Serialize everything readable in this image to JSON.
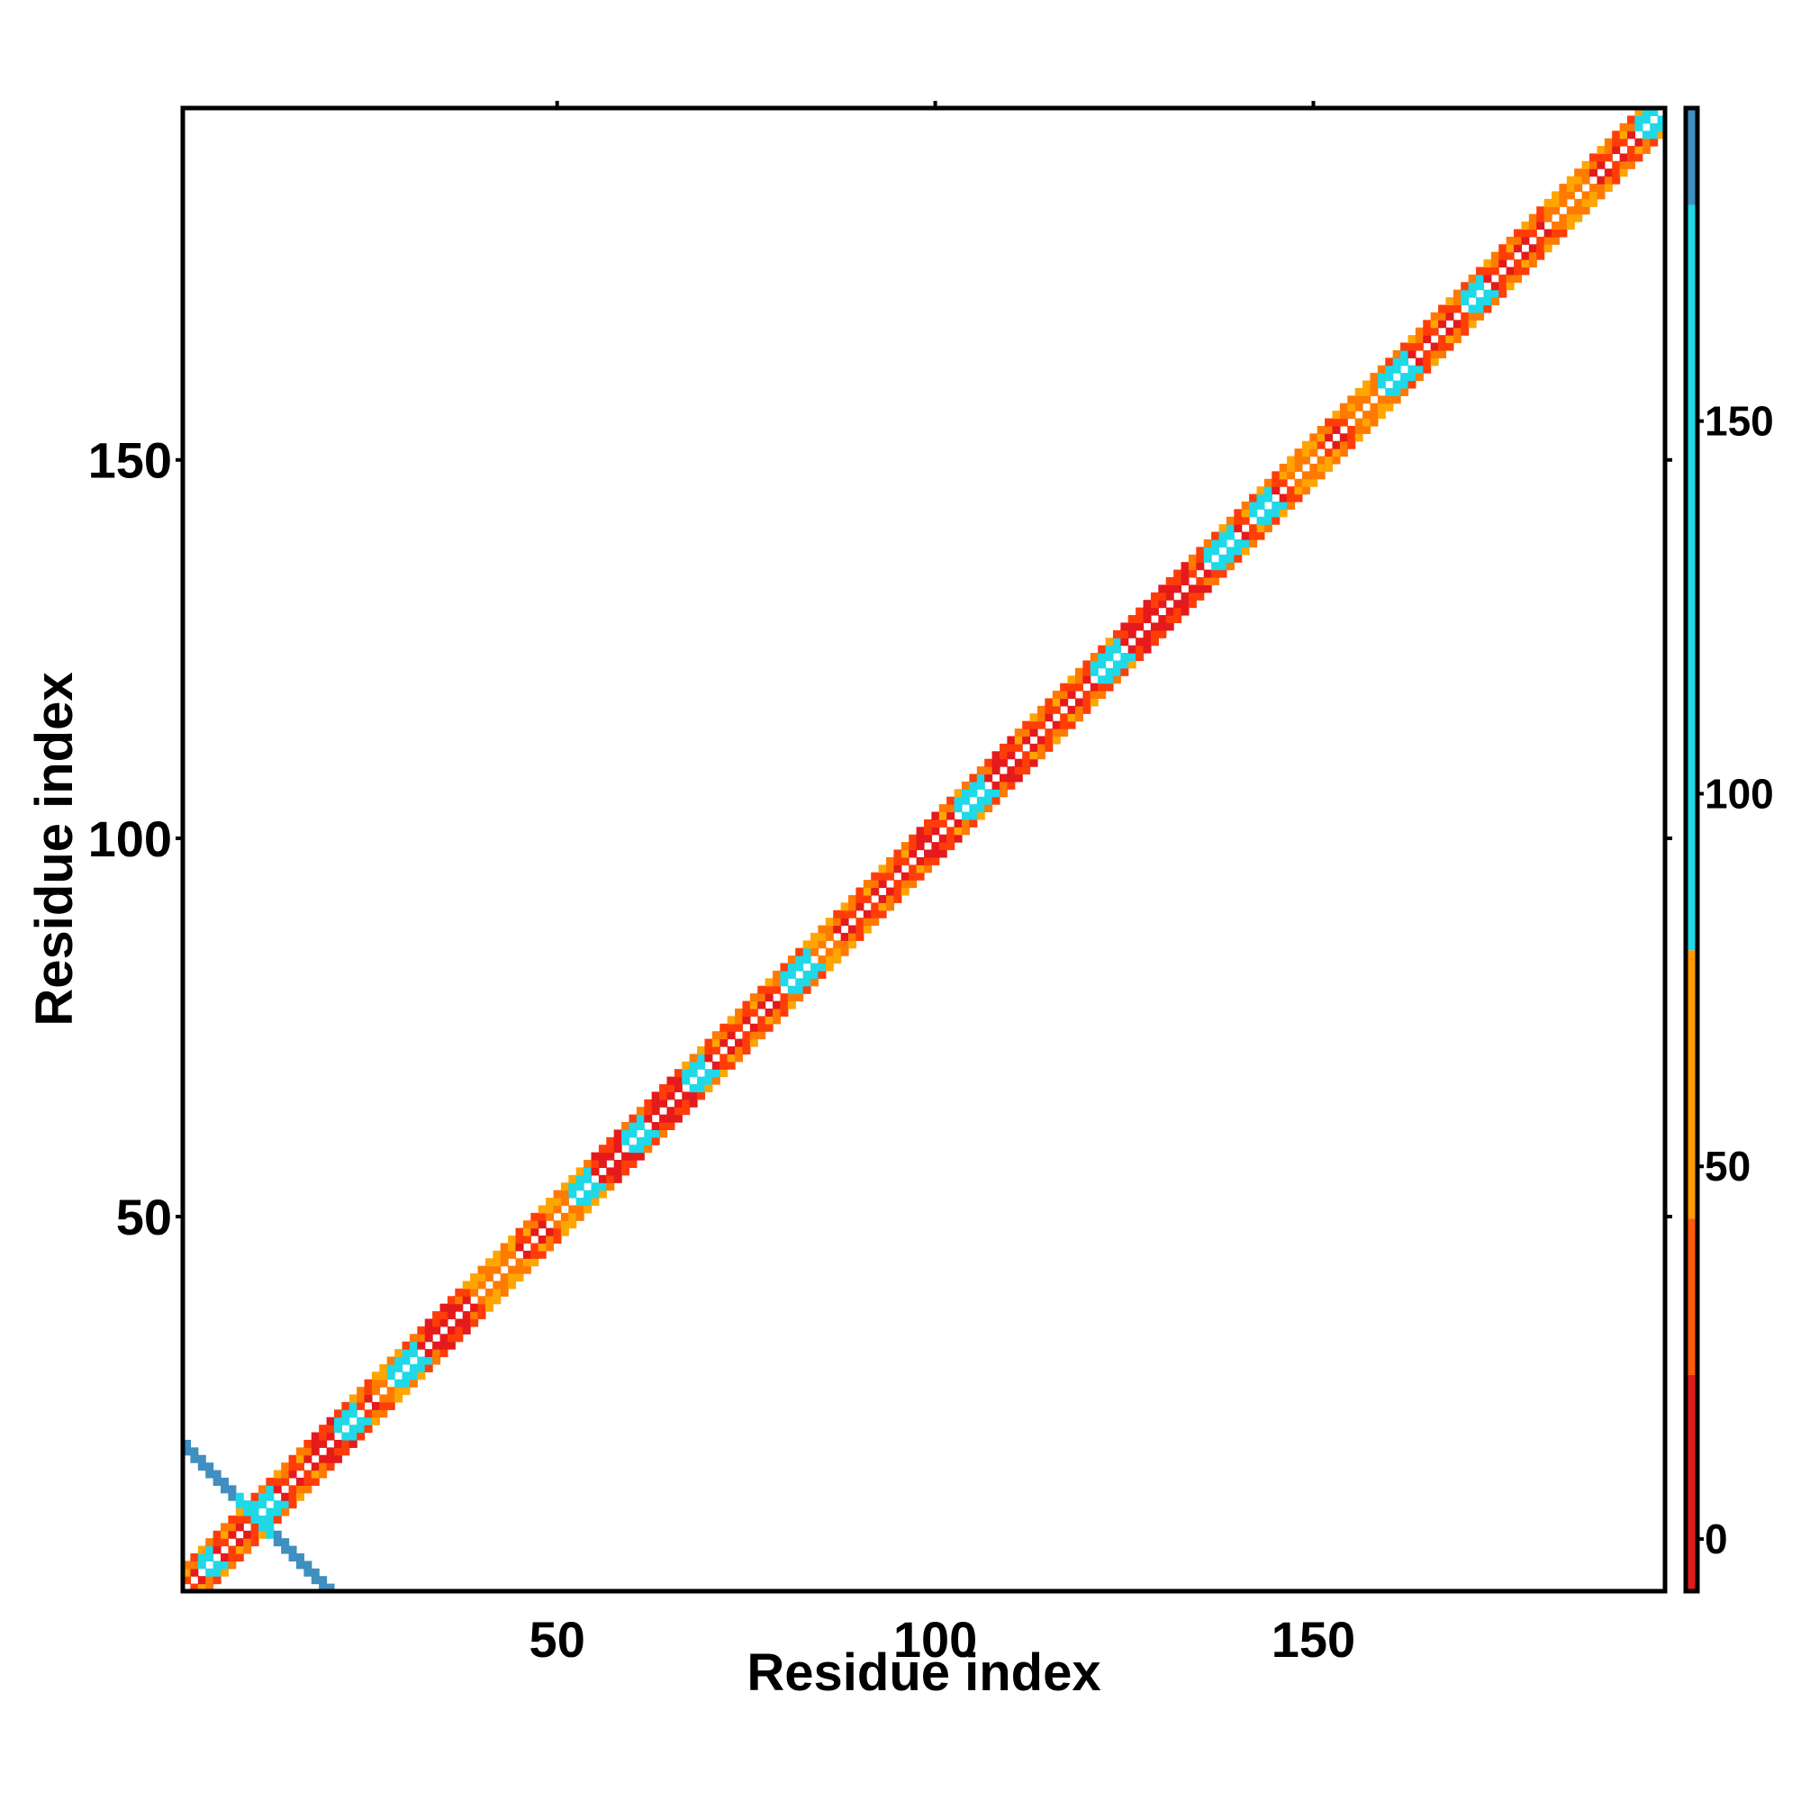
{
  "chart_data": {
    "type": "heatmap",
    "title": "",
    "xlabel": "Residue index",
    "ylabel": "Residue index",
    "xlim": [
      1,
      196
    ],
    "ylim": [
      1,
      196
    ],
    "x_ticks": [
      50,
      100,
      150
    ],
    "y_ticks": [
      50,
      100,
      150
    ],
    "colorbar": {
      "ticks": [
        0,
        50,
        100,
        150
      ],
      "range": [
        -7,
        192
      ],
      "bands": [
        {
          "from": -7,
          "to": 22,
          "color": "#e41a1c"
        },
        {
          "from": 22,
          "to": 43,
          "color": "#ff5a0a"
        },
        {
          "from": 43,
          "to": 79,
          "color": "#ff9a00"
        },
        {
          "from": 79,
          "to": 179,
          "color": "#1fd8e8"
        },
        {
          "from": 179,
          "to": 192,
          "color": "#3f8fc0"
        }
      ]
    },
    "diagonal": {
      "start": 1,
      "end": 196
    },
    "cyan_segments": [
      [
        3,
        4
      ],
      [
        10,
        12
      ],
      [
        21,
        23
      ],
      [
        28,
        31
      ],
      [
        52,
        54
      ],
      [
        59,
        61
      ],
      [
        67,
        69
      ],
      [
        80,
        83
      ],
      [
        103,
        106
      ],
      [
        121,
        124
      ],
      [
        136,
        139
      ],
      [
        142,
        144
      ],
      [
        159,
        162
      ],
      [
        170,
        172
      ],
      [
        193,
        196
      ]
    ],
    "red_segments": [
      [
        18,
        21
      ],
      [
        33,
        36
      ],
      [
        55,
        58
      ],
      [
        62,
        66
      ],
      [
        97,
        100
      ],
      [
        108,
        110
      ],
      [
        124,
        133
      ]
    ],
    "orange_segments": [
      [
        26,
        29
      ],
      [
        39,
        44
      ],
      [
        49,
        52
      ],
      [
        65,
        69
      ],
      [
        84,
        86
      ],
      [
        147,
        150
      ],
      [
        155,
        158
      ],
      [
        181,
        186
      ]
    ],
    "cross_contacts": {
      "center": 10,
      "half_length": 10,
      "color": "#3f8fc0",
      "core_color": "#1fd8e8"
    },
    "grid": false,
    "legend": "none"
  }
}
